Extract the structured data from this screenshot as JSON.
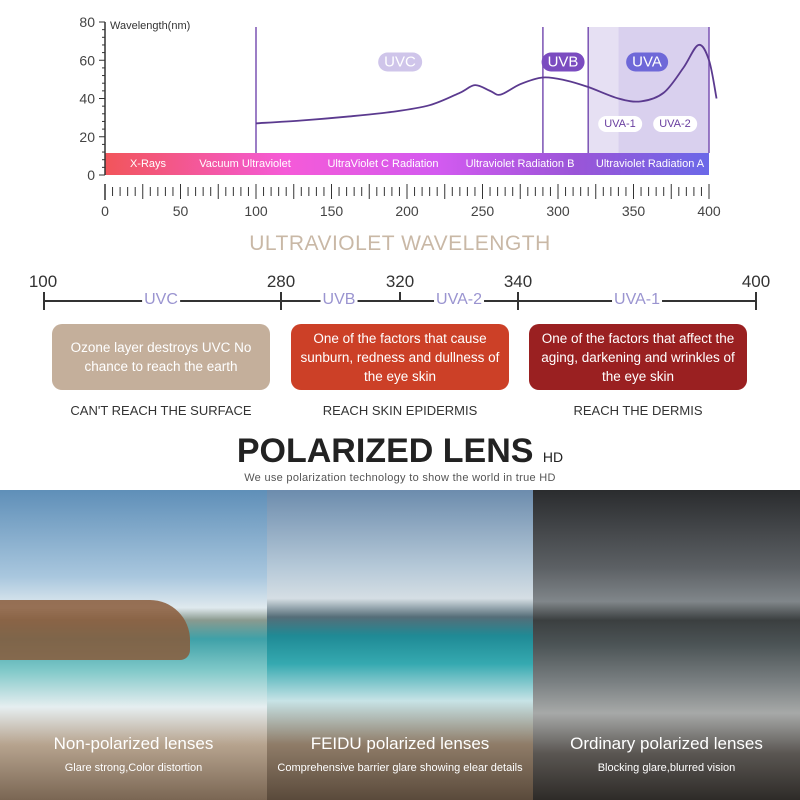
{
  "chart_data": {
    "type": "line",
    "ylabel": "Wavelength(nm)",
    "xlim": [
      0,
      400
    ],
    "ylim": [
      0,
      80
    ],
    "x_ticks": [
      0,
      50,
      100,
      150,
      200,
      250,
      300,
      350,
      400
    ],
    "y_ticks": [
      0,
      20,
      40,
      60,
      80
    ],
    "series": [
      {
        "x": [
          100,
          130,
          160,
          190,
          215,
          235,
          245,
          255,
          262,
          275,
          290,
          305,
          320,
          340,
          355,
          370,
          383,
          393,
          400,
          405
        ],
        "y": [
          27,
          28.5,
          30.5,
          33,
          36.5,
          43,
          47,
          44,
          42,
          47.5,
          51,
          49.5,
          46,
          40,
          38.5,
          43,
          56,
          68,
          60,
          40
        ]
      }
    ],
    "bands": [
      {
        "label": "X-Rays",
        "from": 0,
        "to": 40
      },
      {
        "label": "Vacuum Ultraviolet",
        "from": 40,
        "to": 130
      },
      {
        "label": "UltraViolet C Radiation",
        "from": 130,
        "to": 230
      },
      {
        "label": "Ultraviolet Radiation B",
        "from": 230,
        "to": 320
      },
      {
        "label": "Ultraviolet Radiation A",
        "from": 320,
        "to": 400
      }
    ],
    "region_labels": [
      "UVC",
      "UVB",
      "UVA",
      "UVA-1",
      "UVA-2"
    ],
    "vertical_lines": [
      100,
      290,
      320,
      400
    ],
    "colors": {
      "line": "#5b3a8f",
      "uvc_pill": "#cfc5ea",
      "uvb_pill": "#7b4cc0",
      "uva_pill": "#6e68d8",
      "shade": "#d9d0ee"
    }
  },
  "uv_scale": {
    "title": "ULTRAVIOLET WAVELENGTH",
    "numbers": [
      "100",
      "280",
      "320",
      "340",
      "400"
    ],
    "labels": [
      "UVC",
      "UVB",
      "UVA-2",
      "UVA-1"
    ]
  },
  "effects": [
    {
      "text": "Ozone layer destroys UVC No chance to reach the earth",
      "caption": "CAN'T REACH THE SURFACE",
      "color": "#c4af9b"
    },
    {
      "text": "One of the factors that cause sunburn, redness and dullness of the eye skin",
      "caption": "REACH SKIN EPIDERMIS",
      "color": "#cc4027"
    },
    {
      "text": "One of the factors that affect the aging, darkening and wrinkles of the eye skin",
      "caption": "REACH THE DERMIS",
      "color": "#9a2021"
    }
  ],
  "lens": {
    "title": "POLARIZED LENS",
    "title_suffix": "HD",
    "subtitle": "We use polarization technology to show the world in true HD",
    "panels": [
      {
        "name": "Non-polarized lenses",
        "desc": "Glare strong,Color distortion"
      },
      {
        "name": "FEIDU polarized lenses",
        "desc": "Comprehensive barrier glare showing elear details"
      },
      {
        "name": "Ordinary polarized lenses",
        "desc": "Blocking glare,blurred vision"
      }
    ]
  }
}
